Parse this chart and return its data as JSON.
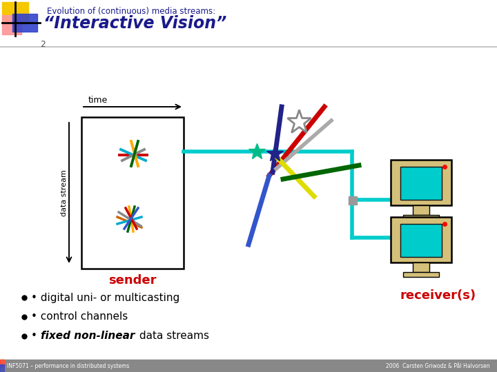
{
  "title_top": "Evolution of (continuous) media streams:",
  "title_main": "“Interactive Vision”",
  "bg_color": "#ffffff",
  "footer_bg": "#888888",
  "footer_left": "INF5071 – performance in distributed systems",
  "footer_right": "2006  Carsten Griwodz & Pål Halvorsen",
  "title_color": "#1a1a8c",
  "sender_label": "sender",
  "receiver_label": "receiver(s)",
  "time_label": "time",
  "data_stream_label": "data stream",
  "red_label": "#cc0000",
  "slide_num": "2",
  "bullet1": "digital uni- or multicasting",
  "bullet2": "control channels",
  "bullet3_italic": "fixed non-linear",
  "bullet3_normal": " data streams",
  "teal": "#00cccc",
  "gray_line": "#aaaaaa"
}
